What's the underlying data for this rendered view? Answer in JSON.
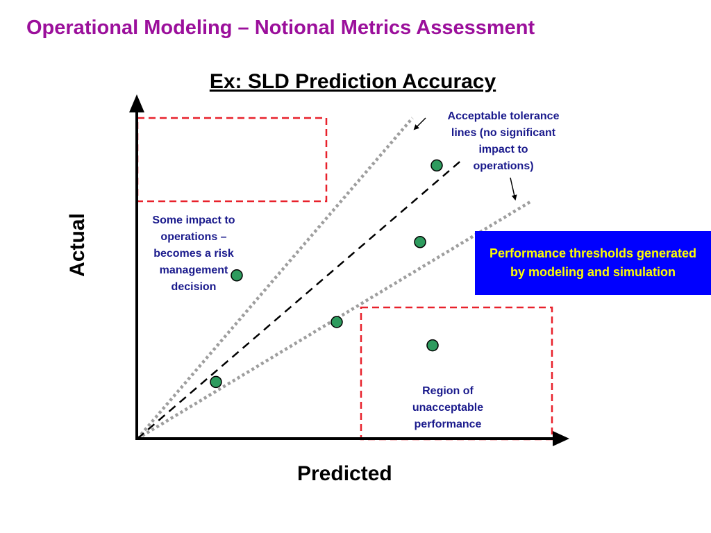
{
  "slide_title": "Operational Modeling – Notional Metrics Assessment",
  "chart_title": "Ex:  SLD Prediction Accuracy",
  "axes": {
    "y_label": "Actual",
    "x_label": "Predicted"
  },
  "annotations": {
    "tolerance_note": [
      "Acceptable tolerance",
      "lines (no significant",
      "impact to",
      "operations)"
    ],
    "risk_note": [
      "Some impact to",
      "operations –",
      "becomes a risk",
      "management",
      "decision"
    ],
    "unacceptable_note": [
      "Region of",
      "unacceptable",
      "performance"
    ]
  },
  "callout": {
    "text": "Performance thresholds generated by modeling and simulation"
  },
  "colors": {
    "title": "#9b0f9b",
    "note_text": "#1a1a8c",
    "callout_bg": "#0000ff",
    "callout_text": "#ffff00",
    "dashed_box": "#e8212b",
    "tolerance_line": "#9e9e9e",
    "point_fill": "#2e9b5e"
  },
  "chart_data": {
    "type": "scatter",
    "title": "Ex:  SLD Prediction Accuracy",
    "xlabel": "Predicted",
    "ylabel": "Actual",
    "points": [
      {
        "x": 0.19,
        "y": 0.17
      },
      {
        "x": 0.24,
        "y": 0.49
      },
      {
        "x": 0.48,
        "y": 0.35
      },
      {
        "x": 0.68,
        "y": 0.59
      },
      {
        "x": 0.72,
        "y": 0.82
      },
      {
        "x": 0.71,
        "y": 0.28
      }
    ]
  }
}
